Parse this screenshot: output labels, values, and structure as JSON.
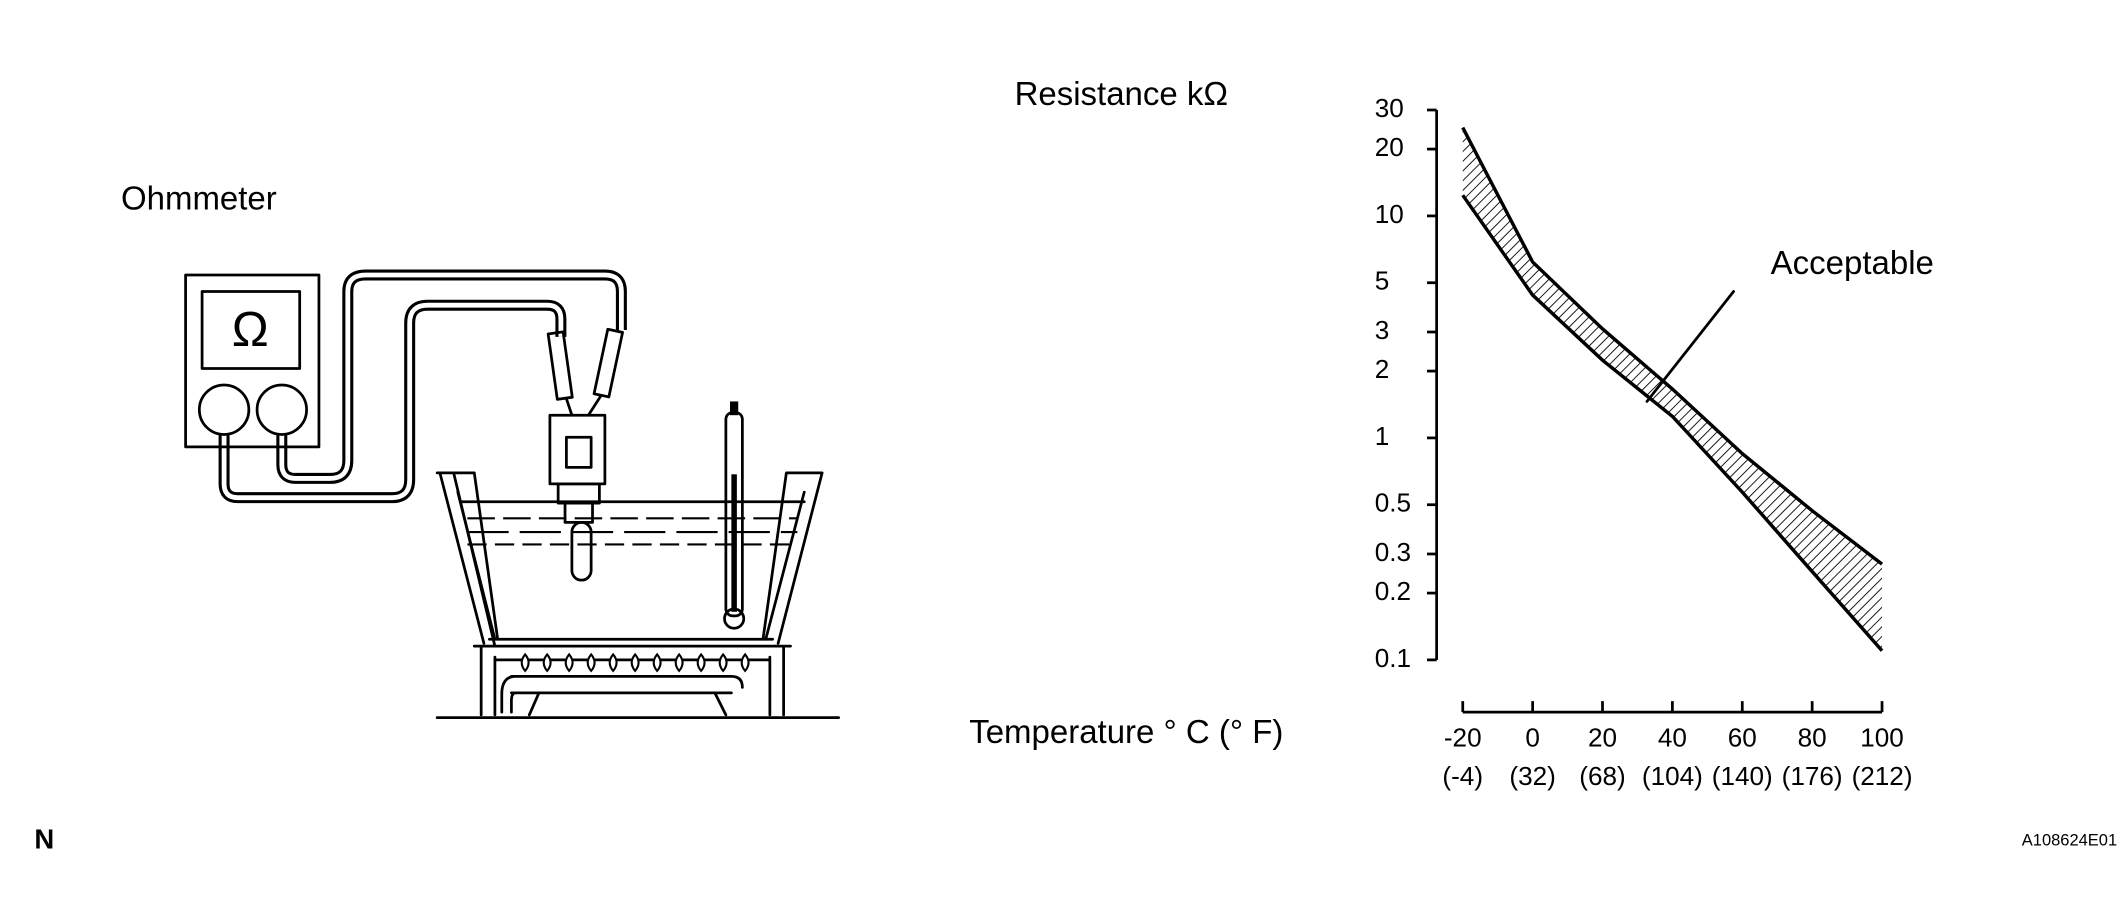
{
  "ohmmeter_label": "Ohmmeter",
  "footer_left": "N",
  "footer_right": "A108624E01",
  "chart_data": {
    "type": "band",
    "ylabel": "Resistance kΩ",
    "xlabel": "Temperature ° C (° F)",
    "annotation": "Acceptable",
    "x": [
      -20,
      0,
      20,
      40,
      60,
      80,
      100
    ],
    "series": [
      {
        "color": "#000000",
        "values": [
          25,
          6.2,
          3.1,
          1.66,
          0.85,
          0.47,
          0.27
        ]
      },
      {
        "color": "#000000",
        "values": [
          12.4,
          4.4,
          2.24,
          1.25,
          0.57,
          0.25,
          0.11
        ]
      }
    ],
    "yscale": "log",
    "ylim": [
      0.1,
      30
    ],
    "yticks": [
      0.1,
      0.2,
      0.3,
      0.5,
      1,
      2,
      3,
      5,
      10,
      20,
      30
    ],
    "xlim": [
      -20,
      100
    ],
    "xticks": [
      -20,
      0,
      20,
      40,
      60,
      80,
      100
    ],
    "xtick_sublabels": [
      "(-4)",
      "(32)",
      "(68)",
      "(104)",
      "(140)",
      "(176)",
      "(212)"
    ],
    "hatch": true
  }
}
